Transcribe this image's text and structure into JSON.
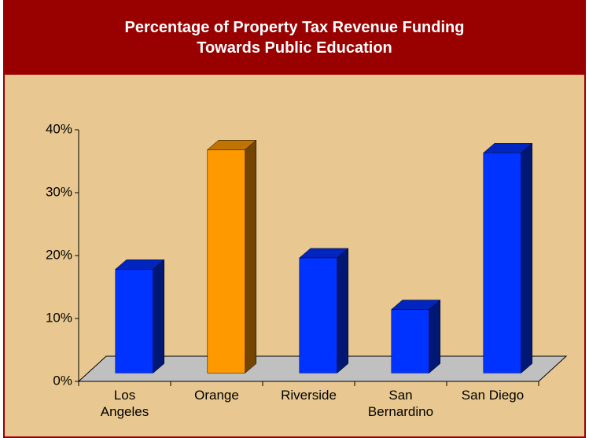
{
  "chart_data": {
    "type": "bar3d",
    "title": "Percentage of Property Tax Revenue Funding Towards Public Education",
    "categories": [
      "Los Angeles",
      "Orange",
      "Riverside",
      "San Bernardino",
      "San Diego"
    ],
    "values": [
      16.5,
      35.5,
      18.3,
      10.1,
      35
    ],
    "colors": [
      "#0033ff",
      "#ff9900",
      "#0033ff",
      "#0033ff",
      "#0033ff"
    ],
    "ylim": [
      0,
      40
    ],
    "yticks": [
      {
        "value": 0,
        "label": "0%"
      },
      {
        "value": 10,
        "label": "10%"
      },
      {
        "value": 20,
        "label": "20%"
      },
      {
        "value": 30,
        "label": "30%"
      },
      {
        "value": 40,
        "label": "40%"
      }
    ]
  }
}
